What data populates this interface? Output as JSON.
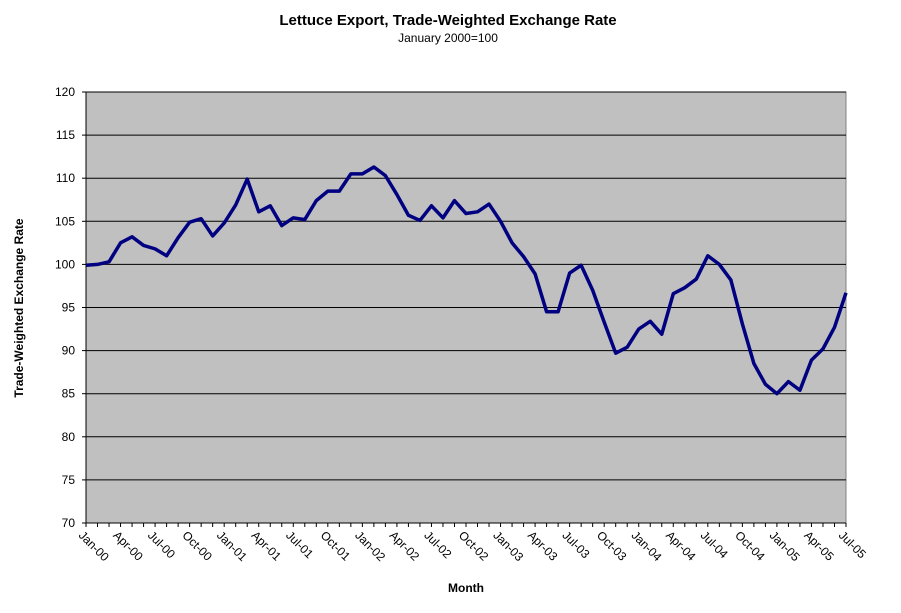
{
  "chart_data": {
    "type": "line",
    "title": "Lettuce Export, Trade-Weighted Exchange Rate",
    "subtitle": "January 2000=100",
    "xlabel": "Month",
    "ylabel": "Trade-Weighted Exchange Rate",
    "ylim": [
      70,
      120
    ],
    "y_ticks": [
      70,
      75,
      80,
      85,
      90,
      95,
      100,
      105,
      110,
      115,
      120
    ],
    "x_tick_labels": [
      "Jan-00",
      "Apr-00",
      "Jul-00",
      "Oct-00",
      "Jan-01",
      "Apr-01",
      "Jul-01",
      "Oct-01",
      "Jan-02",
      "Apr-02",
      "Jul-02",
      "Oct-02",
      "Jan-03",
      "Apr-03",
      "Jul-03",
      "Oct-03",
      "Jan-04",
      "Apr-04",
      "Jul-04",
      "Oct-04",
      "Jan-05",
      "Apr-05",
      "Jul-05"
    ],
    "grid": "horizontal",
    "plot_background": "#c0c0c0",
    "line_color": "#000080",
    "series": [
      {
        "values": [
          99.9,
          100.0,
          100.3,
          102.5,
          103.2,
          102.2,
          101.8,
          101.0,
          103.1,
          104.9,
          105.3,
          103.3,
          104.8,
          106.9,
          109.9,
          106.1,
          106.8,
          104.5,
          105.4,
          105.2,
          107.4,
          108.5,
          108.5,
          110.5,
          110.5,
          111.3,
          110.3,
          108.1,
          105.7,
          105.1,
          106.8,
          105.4,
          107.4,
          105.9,
          106.1,
          107.0,
          105.0,
          102.5,
          100.9,
          98.9,
          94.5,
          94.5,
          99.0,
          99.9,
          97.0,
          93.3,
          89.7,
          90.4,
          92.5,
          93.4,
          91.9,
          96.6,
          97.3,
          98.3,
          101.0,
          100.0,
          98.2,
          93.1,
          88.5,
          86.1,
          85.0,
          86.4,
          85.4,
          88.9,
          90.2,
          92.7,
          96.7
        ]
      }
    ]
  }
}
